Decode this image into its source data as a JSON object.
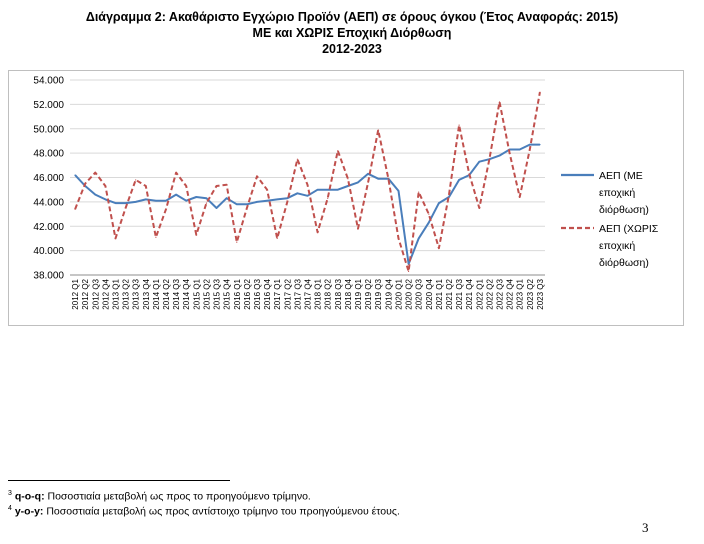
{
  "title": {
    "line1": "Διάγραμμα 2: Ακαθάριστο Εγχώριο Προϊόν (ΑΕΠ) σε όρους όγκου (Έτος Αναφοράς: 2015)",
    "line2": "ΜΕ και ΧΩΡΙΣ Εποχική Διόρθωση",
    "line3": "2012-2023"
  },
  "chart_data": {
    "type": "line",
    "ylim": [
      38.0,
      54.0
    ],
    "yticks": [
      "38.000",
      "40.000",
      "42.000",
      "44.000",
      "46.000",
      "48.000",
      "50.000",
      "52.000",
      "54.000"
    ],
    "categories": [
      "2012 Q1",
      "2012 Q2",
      "2012 Q3",
      "2012 Q4",
      "2013 Q1",
      "2013 Q2",
      "2013 Q3",
      "2013 Q4",
      "2014 Q1",
      "2014 Q2",
      "2014 Q3",
      "2014 Q4",
      "2015 Q1",
      "2015 Q2",
      "2015 Q3",
      "2015 Q4",
      "2016 Q1",
      "2016 Q2",
      "2016 Q3",
      "2016 Q4",
      "2017 Q1",
      "2017 Q2",
      "2017 Q3",
      "2017 Q4",
      "2018 Q1",
      "2018 Q2",
      "2018 Q3",
      "2018 Q4",
      "2019 Q1",
      "2019 Q2",
      "2019 Q3",
      "2019 Q4",
      "2020 Q1",
      "2020 Q2",
      "2020 Q3",
      "2020 Q4",
      "2021 Q1",
      "2021 Q2",
      "2021 Q3",
      "2021 Q4",
      "2022 Q1",
      "2022 Q2",
      "2022 Q3",
      "2022 Q4",
      "2023 Q1",
      "2023 Q2",
      "2023 Q3"
    ],
    "series": [
      {
        "name": "ΑΕΠ (ΜΕ εποχική διόρθωση)",
        "color": "#4a7ebb",
        "dashed": false,
        "values": [
          46.2,
          45.3,
          44.6,
          44.2,
          43.9,
          43.9,
          44.0,
          44.2,
          44.1,
          44.1,
          44.6,
          44.1,
          44.4,
          44.3,
          43.5,
          44.3,
          43.8,
          43.8,
          44.0,
          44.1,
          44.2,
          44.3,
          44.7,
          44.5,
          45.0,
          45.0,
          45.0,
          45.3,
          45.6,
          46.3,
          45.9,
          45.9,
          44.9,
          38.9,
          41.0,
          42.3,
          43.9,
          44.4,
          45.8,
          46.2,
          47.3,
          47.5,
          47.8,
          48.3,
          48.3,
          48.7,
          48.7
        ]
      },
      {
        "name": "ΑΕΠ (ΧΩΡΙΣ εποχική διόρθωση)",
        "color": "#c0504d",
        "dashed": true,
        "values": [
          43.4,
          45.5,
          46.4,
          45.3,
          41.0,
          43.5,
          45.8,
          45.3,
          41.1,
          43.4,
          46.4,
          45.3,
          41.3,
          43.9,
          45.3,
          45.4,
          40.7,
          43.5,
          46.1,
          45.0,
          41.0,
          44.0,
          47.5,
          45.4,
          41.5,
          44.3,
          48.2,
          45.9,
          41.8,
          45.6,
          49.9,
          45.9,
          41.0,
          38.3,
          44.8,
          43.0,
          40.2,
          44.6,
          50.3,
          46.3,
          43.5,
          47.5,
          52.2,
          48.0,
          44.4,
          48.3,
          53.0
        ]
      }
    ],
    "legend_position": "right",
    "grid": true
  },
  "legend": {
    "s1": [
      "ΑΕΠ (ΜΕ",
      "εποχική",
      "διόρθωση)"
    ],
    "s2": [
      "ΑΕΠ (ΧΩΡΙΣ",
      "εποχική",
      "διόρθωση)"
    ]
  },
  "footnotes": [
    {
      "num": "3",
      "term": "q-o-q:",
      "text": " Ποσοστιαία μεταβολή ως προς το προηγούμενο τρίμηνο."
    },
    {
      "num": "4",
      "term": "y-o-y:",
      "text": " Ποσοστιαία μεταβολή ως προς αντίστοιχο τρίμηνο του προηγούμενου έτους."
    }
  ],
  "page_number": "3"
}
